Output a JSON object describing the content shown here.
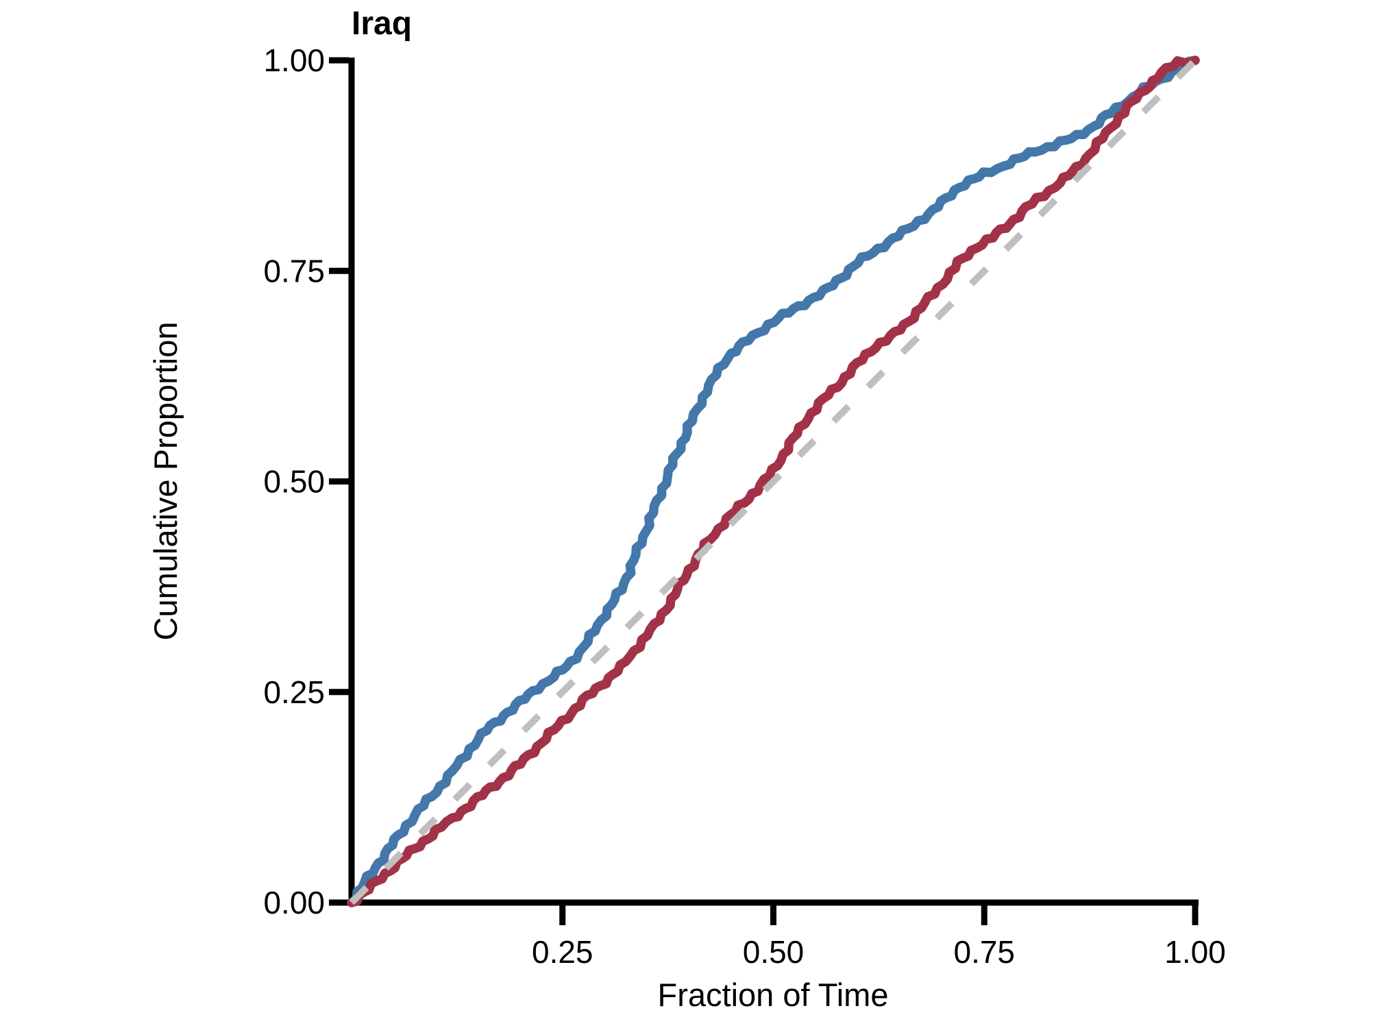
{
  "page": {
    "background": "#ffffff",
    "text_color": "#000000",
    "axis_color": "#000000"
  },
  "chart_data": {
    "type": "line",
    "title": "Iraq",
    "xlabel": "Fraction of Time",
    "ylabel": "Cumulative Proportion",
    "xlim": [
      0,
      1
    ],
    "ylim": [
      0,
      1
    ],
    "grid": false,
    "legend_position": "none",
    "x_ticks": {
      "values": [
        0.25,
        0.5,
        0.75,
        1.0
      ],
      "labels": [
        "0.25",
        "0.50",
        "0.75",
        "1.00"
      ]
    },
    "y_ticks": {
      "values": [
        0.0,
        0.25,
        0.5,
        0.75,
        1.0
      ],
      "labels": [
        "0.00",
        "0.25",
        "0.50",
        "0.75",
        "1.00"
      ]
    },
    "reference_line": {
      "name": "diagonal-y-equals-x",
      "style": "dashed",
      "color": "#BFBFBF",
      "from": [
        0,
        0
      ],
      "to": [
        1,
        1
      ]
    },
    "series": [
      {
        "name": "blue-curve",
        "color": "#4477AA",
        "style": "solid-wavy",
        "points": [
          [
            0.0,
            0.0
          ],
          [
            0.02,
            0.03
          ],
          [
            0.04,
            0.058
          ],
          [
            0.06,
            0.085
          ],
          [
            0.08,
            0.11
          ],
          [
            0.1,
            0.132
          ],
          [
            0.12,
            0.156
          ],
          [
            0.14,
            0.182
          ],
          [
            0.16,
            0.205
          ],
          [
            0.18,
            0.222
          ],
          [
            0.2,
            0.238
          ],
          [
            0.22,
            0.255
          ],
          [
            0.24,
            0.268
          ],
          [
            0.26,
            0.285
          ],
          [
            0.28,
            0.31
          ],
          [
            0.3,
            0.342
          ],
          [
            0.32,
            0.372
          ],
          [
            0.34,
            0.42
          ],
          [
            0.36,
            0.47
          ],
          [
            0.38,
            0.52
          ],
          [
            0.4,
            0.565
          ],
          [
            0.42,
            0.607
          ],
          [
            0.44,
            0.64
          ],
          [
            0.45,
            0.652
          ],
          [
            0.47,
            0.668
          ],
          [
            0.5,
            0.69
          ],
          [
            0.53,
            0.708
          ],
          [
            0.56,
            0.725
          ],
          [
            0.58,
            0.742
          ],
          [
            0.6,
            0.76
          ],
          [
            0.63,
            0.78
          ],
          [
            0.66,
            0.8
          ],
          [
            0.69,
            0.822
          ],
          [
            0.72,
            0.85
          ],
          [
            0.75,
            0.865
          ],
          [
            0.78,
            0.878
          ],
          [
            0.81,
            0.892
          ],
          [
            0.84,
            0.902
          ],
          [
            0.86,
            0.91
          ],
          [
            0.88,
            0.922
          ],
          [
            0.9,
            0.938
          ],
          [
            0.92,
            0.952
          ],
          [
            0.94,
            0.966
          ],
          [
            0.96,
            0.978
          ],
          [
            0.98,
            0.99
          ],
          [
            1.0,
            1.0
          ]
        ]
      },
      {
        "name": "red-curve",
        "color": "#A23248",
        "style": "solid-wavy",
        "points": [
          [
            0.0,
            0.0
          ],
          [
            0.02,
            0.016
          ],
          [
            0.04,
            0.034
          ],
          [
            0.06,
            0.052
          ],
          [
            0.08,
            0.068
          ],
          [
            0.1,
            0.085
          ],
          [
            0.12,
            0.1
          ],
          [
            0.14,
            0.116
          ],
          [
            0.16,
            0.132
          ],
          [
            0.18,
            0.148
          ],
          [
            0.2,
            0.165
          ],
          [
            0.22,
            0.185
          ],
          [
            0.24,
            0.205
          ],
          [
            0.26,
            0.225
          ],
          [
            0.28,
            0.245
          ],
          [
            0.3,
            0.262
          ],
          [
            0.32,
            0.28
          ],
          [
            0.34,
            0.305
          ],
          [
            0.36,
            0.33
          ],
          [
            0.38,
            0.36
          ],
          [
            0.4,
            0.395
          ],
          [
            0.42,
            0.425
          ],
          [
            0.44,
            0.45
          ],
          [
            0.46,
            0.47
          ],
          [
            0.48,
            0.49
          ],
          [
            0.5,
            0.513
          ],
          [
            0.52,
            0.545
          ],
          [
            0.54,
            0.575
          ],
          [
            0.56,
            0.598
          ],
          [
            0.58,
            0.618
          ],
          [
            0.6,
            0.64
          ],
          [
            0.62,
            0.66
          ],
          [
            0.64,
            0.672
          ],
          [
            0.66,
            0.69
          ],
          [
            0.68,
            0.712
          ],
          [
            0.7,
            0.735
          ],
          [
            0.72,
            0.76
          ],
          [
            0.74,
            0.778
          ],
          [
            0.76,
            0.79
          ],
          [
            0.78,
            0.806
          ],
          [
            0.8,
            0.825
          ],
          [
            0.82,
            0.84
          ],
          [
            0.84,
            0.855
          ],
          [
            0.86,
            0.872
          ],
          [
            0.88,
            0.895
          ],
          [
            0.9,
            0.92
          ],
          [
            0.92,
            0.945
          ],
          [
            0.94,
            0.965
          ],
          [
            0.96,
            0.985
          ],
          [
            0.98,
            0.998
          ],
          [
            1.0,
            1.0
          ]
        ]
      }
    ]
  }
}
